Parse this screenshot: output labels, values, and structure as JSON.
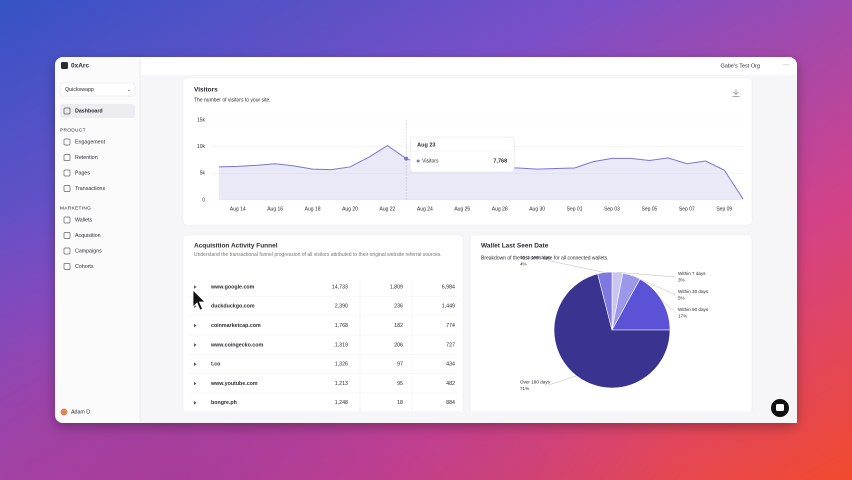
{
  "window": {
    "logo": "0xArc",
    "org": "Gabe's Test Org"
  },
  "sidebar": {
    "project": "Quickswapp",
    "dashboard": "Dashboard",
    "sections": [
      {
        "title": "PRODUCT",
        "items": [
          "Engagement",
          "Retention",
          "Pages",
          "Transactions"
        ]
      },
      {
        "title": "MARKETING",
        "items": [
          "Wallets",
          "Acquisition",
          "Campaigns",
          "Cohorts"
        ]
      }
    ],
    "user": "Adam D"
  },
  "chart_data": [
    {
      "type": "area",
      "title": "Visitors",
      "subtitle": "The number of visitors to your site.",
      "categories": [
        null,
        "Aug 14",
        null,
        "Aug 16",
        null,
        "Aug 18",
        null,
        "Aug 20",
        null,
        "Aug 22",
        null,
        "Aug 24",
        null,
        "Aug 26",
        null,
        "Aug 28",
        null,
        "Aug 30",
        null,
        "Sep 01",
        null,
        "Sep 03",
        null,
        "Sep 05",
        null,
        "Sep 07",
        null,
        "Sep 09",
        null
      ],
      "series": [
        {
          "name": "Visitors",
          "color": "#7b76d2",
          "values": [
            6200,
            6300,
            6500,
            6800,
            6400,
            5800,
            5700,
            6200,
            8000,
            10200,
            7768,
            6500,
            6300,
            6200,
            6000,
            6100,
            6000,
            5800,
            5900,
            6000,
            7200,
            7800,
            7800,
            7400,
            7900,
            6800,
            7300,
            5600,
            200
          ]
        }
      ],
      "ylim": [
        0,
        15000
      ],
      "yticks": [
        0,
        {
          "value": 5000,
          "label": "5k"
        },
        {
          "value": 10000,
          "label": "10k"
        },
        {
          "value": 15000,
          "label": "15k"
        }
      ],
      "grid": true,
      "tooltip": {
        "title": "Aug 23",
        "value": "7,768"
      }
    },
    {
      "type": "pie",
      "title": "Wallet Last Seen Date",
      "subtitle": "Breakdown of the last seen date for all connected wallets.",
      "categories": [
        "Within 7 days",
        "Within 30 days",
        "Within 90 days",
        "Over 180 days",
        "90 to 180 days"
      ],
      "values": [
        3,
        5,
        17,
        71,
        4
      ],
      "value_labels": [
        "3%",
        "5%",
        "17%",
        "71%",
        "4%"
      ],
      "colors": [
        "#c9c6f2",
        "#9d97ea",
        "#5b52d6",
        "#3a3490",
        "#7e78e0"
      ]
    }
  ],
  "funnel": {
    "title": "Acquisition Activity Funnel",
    "subtitle": "Understand the transactional funnel progression of all visitors attributed to their original website referral sources.",
    "rows": [
      [
        "www.google.com",
        "14,733",
        "1,809",
        "6,984"
      ],
      [
        "duckduckgo.com",
        "2,390",
        "236",
        "1,449"
      ],
      [
        "coinmarketcap.com",
        "1,768",
        "182",
        "774"
      ],
      [
        "www.coingecko.com",
        "1,319",
        "206",
        "727"
      ],
      [
        "t.co",
        "1,326",
        "97",
        "434"
      ],
      [
        "www.youtube.com",
        "1,213",
        "95",
        "482"
      ],
      [
        "bongre.ph",
        "1,248",
        "18",
        "884"
      ]
    ]
  }
}
